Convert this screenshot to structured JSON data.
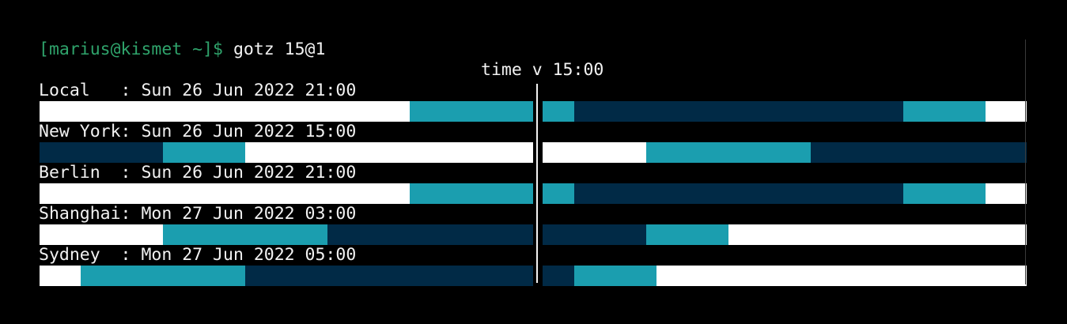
{
  "terminal": {
    "prompt": "[marius@kismet ~]$",
    "command": "gotz 15@1"
  },
  "header": {
    "label": "time v 15:00"
  },
  "colors": {
    "day": "#ffffff",
    "twilight": "#1b9eaf",
    "night": "#012a46",
    "prompt": "#2fa36b"
  },
  "timezones": [
    {
      "label": "Local   : Sun 26 Jun 2022 21:00",
      "segments": [
        [
          "day",
          0,
          9
        ],
        [
          "twilight",
          9,
          12
        ],
        [
          "twilight",
          12,
          13
        ],
        [
          "night",
          13,
          21
        ],
        [
          "twilight",
          21,
          23
        ],
        [
          "day",
          23,
          24
        ]
      ]
    },
    {
      "label": "New York: Sun 26 Jun 2022 15:00",
      "segments": [
        [
          "night",
          0,
          3
        ],
        [
          "twilight",
          3,
          5
        ],
        [
          "day",
          5,
          12
        ],
        [
          "day",
          12,
          14.75
        ],
        [
          "twilight",
          14.75,
          18.75
        ],
        [
          "night",
          18.75,
          24
        ]
      ]
    },
    {
      "label": "Berlin  : Sun 26 Jun 2022 21:00",
      "segments": [
        [
          "day",
          0,
          9
        ],
        [
          "twilight",
          9,
          12
        ],
        [
          "twilight",
          12,
          13
        ],
        [
          "night",
          13,
          21
        ],
        [
          "twilight",
          21,
          23
        ],
        [
          "day",
          23,
          24
        ]
      ]
    },
    {
      "label": "Shanghai: Mon 27 Jun 2022 03:00",
      "segments": [
        [
          "day",
          0,
          3
        ],
        [
          "twilight",
          3,
          7
        ],
        [
          "night",
          7,
          12
        ],
        [
          "night",
          12,
          14.75
        ],
        [
          "twilight",
          14.75,
          16.75
        ],
        [
          "day",
          16.75,
          24
        ]
      ]
    },
    {
      "label": "Sydney  : Mon 27 Jun 2022 05:00",
      "segments": [
        [
          "day",
          0,
          1
        ],
        [
          "twilight",
          1,
          5
        ],
        [
          "night",
          5,
          12
        ],
        [
          "night",
          12,
          13
        ],
        [
          "twilight",
          13,
          15
        ],
        [
          "day",
          15,
          24
        ]
      ]
    }
  ]
}
